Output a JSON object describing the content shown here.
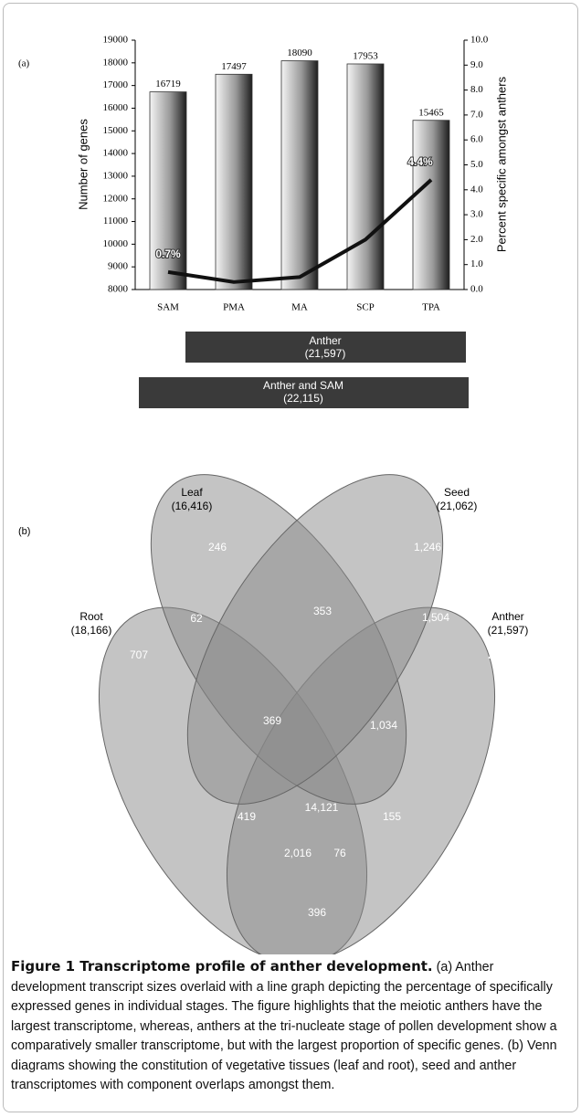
{
  "chart_data": {
    "type": "bar",
    "label": "(a)",
    "categories": [
      "SAM",
      "PMA",
      "MA",
      "SCP",
      "TPA"
    ],
    "series": [
      {
        "type": "bar",
        "values": [
          16719,
          17497,
          18090,
          17953,
          15465
        ]
      },
      {
        "type": "line",
        "axis": "y2",
        "color": "#111111",
        "values": [
          0.7,
          0.3,
          0.5,
          2.0,
          4.4
        ],
        "value_labels": [
          "0.7%",
          null,
          null,
          null,
          "4.4%"
        ]
      }
    ],
    "ylabel": "Number of genes",
    "y2label": "Percent specific amongst anthers",
    "ylim": [
      8000,
      19000
    ],
    "yticks": [
      8000,
      9000,
      10000,
      11000,
      12000,
      13000,
      14000,
      15000,
      16000,
      17000,
      18000,
      19000
    ],
    "y2lim": [
      0,
      10
    ],
    "y2ticks": [
      {
        "value": 0,
        "label": "0.0"
      },
      {
        "value": 1,
        "label": "1.0"
      },
      {
        "value": 2,
        "label": "2.0"
      },
      {
        "value": 3,
        "label": "3.0"
      },
      {
        "value": 4,
        "label": "4.0"
      },
      {
        "value": 5,
        "label": "5.0"
      },
      {
        "value": 6,
        "label": "6.0"
      },
      {
        "value": 7,
        "label": "7.0"
      },
      {
        "value": 8,
        "label": "8.0"
      },
      {
        "value": 9,
        "label": "9.0"
      },
      {
        "value": 10,
        "label": "10.0"
      }
    ],
    "annotations": [
      {
        "label": "Anther",
        "count": "(21,597)"
      },
      {
        "label": "Anther and SAM",
        "count": "(22,115)"
      }
    ]
  },
  "venn": {
    "label": "(b)",
    "sets": [
      {
        "name": "Leaf",
        "size": "(16,416)"
      },
      {
        "name": "Seed",
        "size": "(21,062)"
      },
      {
        "name": "Root",
        "size": "(18,166)"
      },
      {
        "name": "Anther",
        "size": "(21,597)"
      }
    ],
    "regions": [
      "246",
      "1,246",
      "62",
      "353",
      "1,504",
      "707",
      "2,295",
      "369",
      "1,034",
      "419",
      "14,121",
      "155",
      "2,016",
      "76",
      "396"
    ]
  },
  "caption": {
    "title": "Figure 1 Transcriptome profile of anther development.",
    "text": "(a) Anther development transcript sizes overlaid with a line graph depicting the percentage of specifically expressed genes in individual stages. The figure highlights that the meiotic anthers have the largest transcriptome, whereas, anthers at the tri-nucleate stage of pollen development show a comparatively smaller transcriptome, but with the largest proportion of specific genes. (b) Venn diagrams showing the constitution of vegetative tissues (leaf and root), seed and anther transcriptomes with component overlaps amongst them."
  }
}
